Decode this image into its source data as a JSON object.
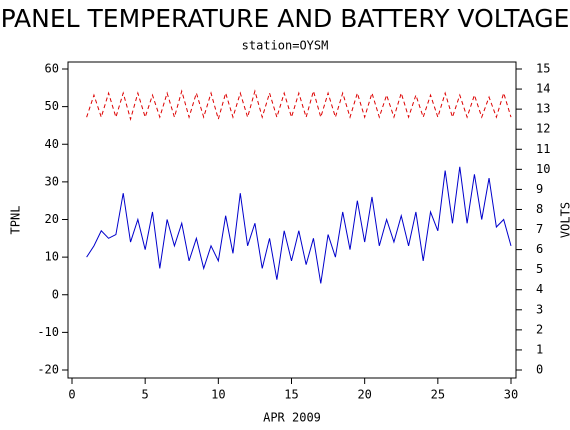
{
  "chart_data": {
    "type": "line",
    "title": "PANEL TEMPERATURE AND BATTERY VOLTAGE",
    "subtitle": "station=OYSM",
    "xlabel": "APR 2009",
    "ylabel": "TPNL",
    "y2label": "VOLTS",
    "x": [
      1,
      1.5,
      2,
      2.5,
      3,
      3.5,
      4,
      4.5,
      5,
      5.5,
      6,
      6.5,
      7,
      7.5,
      8,
      8.5,
      9,
      9.5,
      10,
      10.5,
      11,
      11.5,
      12,
      12.5,
      13,
      13.5,
      14,
      14.5,
      15,
      15.5,
      16,
      16.5,
      17,
      17.5,
      18,
      18.5,
      19,
      19.5,
      20,
      20.5,
      21,
      21.5,
      22,
      22.5,
      23,
      23.5,
      24,
      24.5,
      25,
      25.5,
      26,
      26.5,
      27,
      27.5,
      28,
      28.5,
      29,
      29.5,
      30
    ],
    "series": [
      {
        "color": "#0000cc",
        "axis": "y",
        "dash": false,
        "values": [
          10,
          13,
          17,
          15,
          16,
          27,
          14,
          20,
          12,
          22,
          7,
          20,
          13,
          19,
          9,
          15,
          7,
          13,
          9,
          21,
          11,
          27,
          13,
          19,
          7,
          15,
          4,
          17,
          9,
          17,
          8,
          15,
          3,
          16,
          10,
          22,
          12,
          25,
          14,
          26,
          13,
          20,
          14,
          21,
          13,
          22,
          9,
          22,
          17,
          33,
          19,
          34,
          19,
          32,
          20,
          31,
          18,
          20,
          13
        ]
      },
      {
        "color": "#dd0000",
        "axis": "y2",
        "dash": true,
        "values": [
          12.6,
          13.7,
          12.6,
          13.8,
          12.6,
          13.8,
          12.5,
          13.8,
          12.6,
          13.7,
          12.6,
          13.8,
          12.6,
          13.9,
          12.6,
          13.8,
          12.6,
          13.8,
          12.5,
          13.8,
          12.6,
          13.8,
          12.6,
          13.9,
          12.6,
          13.8,
          12.6,
          13.8,
          12.6,
          13.8,
          12.6,
          13.9,
          12.6,
          13.8,
          12.6,
          13.8,
          12.6,
          13.8,
          12.6,
          13.8,
          12.6,
          13.7,
          12.6,
          13.8,
          12.6,
          13.7,
          12.6,
          13.7,
          12.6,
          13.8,
          12.6,
          13.7,
          12.6,
          13.7,
          12.6,
          13.6,
          12.6,
          13.8,
          12.6
        ]
      }
    ],
    "xlim": [
      0,
      30
    ],
    "xticks": [
      0,
      5,
      10,
      15,
      20,
      25,
      30
    ],
    "ylim": [
      -20,
      60
    ],
    "yticks": [
      -20,
      -10,
      0,
      10,
      20,
      30,
      40,
      50,
      60
    ],
    "y2lim": [
      0,
      15
    ],
    "y2ticks": [
      0,
      1,
      2,
      3,
      4,
      5,
      6,
      7,
      8,
      9,
      10,
      11,
      12,
      13,
      14,
      15
    ]
  }
}
